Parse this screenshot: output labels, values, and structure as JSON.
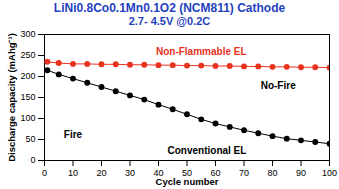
{
  "chart_data": {
    "type": "line",
    "title": "LiNi0.8Co0.1Mn0.1O2 (NCM811) Cathode",
    "subtitle": "2.7- 4.5V @0.2C",
    "x_label": "Cycle number",
    "y_label": "Discharge capacity (mAhg⁻¹)",
    "x": [
      1,
      5,
      10,
      15,
      20,
      25,
      30,
      35,
      40,
      45,
      50,
      55,
      60,
      65,
      70,
      75,
      80,
      85,
      90,
      95,
      100
    ],
    "series": [
      {
        "name": "Non-Flammable EL",
        "color": "#e8321e",
        "marker": "circle",
        "values": [
          235,
          232,
          230,
          230,
          229,
          229,
          228,
          228,
          227,
          227,
          226,
          226,
          225,
          225,
          224,
          224,
          223,
          223,
          222,
          222,
          221
        ]
      },
      {
        "name": "Conventional EL",
        "color": "#000000",
        "marker": "circle",
        "values": [
          215,
          205,
          195,
          185,
          175,
          165,
          155,
          145,
          133,
          122,
          110,
          98,
          88,
          80,
          72,
          65,
          58,
          52,
          48,
          44,
          40
        ]
      }
    ],
    "annotations": [
      {
        "text": "Non-Flammable EL",
        "x": 55,
        "y": 258,
        "color": "#e8321e"
      },
      {
        "text": "Conventional EL",
        "x": 57,
        "y": 22,
        "color": "#000000"
      },
      {
        "text": "Fire",
        "x": 10,
        "y": 62,
        "color": "#000000"
      },
      {
        "text": "No-Fire",
        "x": 82,
        "y": 178,
        "color": "#000000"
      }
    ],
    "xlim": [
      0,
      100
    ],
    "xticks": [
      0,
      10,
      20,
      30,
      40,
      50,
      60,
      70,
      80,
      90,
      100
    ],
    "ylim": [
      0,
      300
    ],
    "yticks": [
      0,
      50,
      100,
      150,
      200,
      250,
      300
    ],
    "grid": false
  }
}
